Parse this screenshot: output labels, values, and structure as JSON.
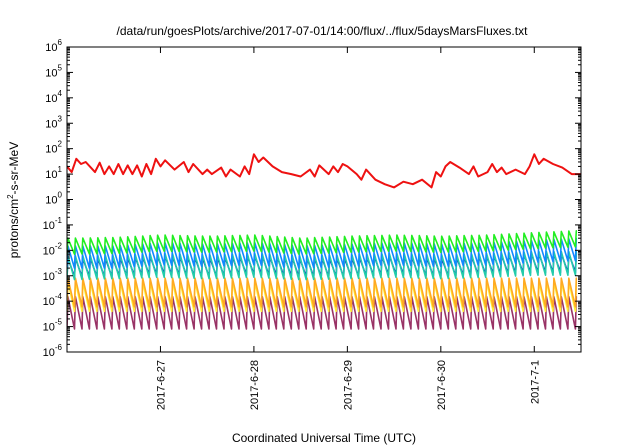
{
  "chart_data": {
    "type": "line",
    "title": "/data/run/goesPlots/archive/2017-07-01/14:00/flux/../flux/5daysMarsFluxes.txt",
    "xlabel": "Coordinated Universal Time (UTC)",
    "ylabel_base": "protons/cm",
    "ylabel_sup": "2",
    "ylabel_rest": "-s-sr-MeV",
    "yscale": "log",
    "ylim": [
      1e-06,
      1000000.0
    ],
    "xlim": [
      0,
      5.5
    ],
    "grid": false,
    "legend": "none",
    "yticks": [
      {
        "base": "10",
        "exp": "-6"
      },
      {
        "base": "10",
        "exp": "-5"
      },
      {
        "base": "10",
        "exp": "-4"
      },
      {
        "base": "10",
        "exp": "-3"
      },
      {
        "base": "10",
        "exp": "-2"
      },
      {
        "base": "10",
        "exp": "-1"
      },
      {
        "base": "10",
        "exp": "0"
      },
      {
        "base": "10",
        "exp": "1"
      },
      {
        "base": "10",
        "exp": "2"
      },
      {
        "base": "10",
        "exp": "3"
      },
      {
        "base": "10",
        "exp": "4"
      },
      {
        "base": "10",
        "exp": "5"
      },
      {
        "base": "10",
        "exp": "6"
      }
    ],
    "xticks": [
      {
        "label": "2017-6-27",
        "pos": 1.0
      },
      {
        "label": "2017-6-28",
        "pos": 2.0
      },
      {
        "label": "2017-6-29",
        "pos": 3.0
      },
      {
        "label": "2017-6-30",
        "pos": 4.0
      },
      {
        "label": "2017-7-1",
        "pos": 5.0
      }
    ],
    "series": [
      {
        "color": "#ee1111",
        "width": 2,
        "x": [
          0,
          0.05,
          0.1,
          0.15,
          0.2,
          0.3,
          0.35,
          0.4,
          0.45,
          0.5,
          0.55,
          0.6,
          0.65,
          0.7,
          0.75,
          0.8,
          0.85,
          0.9,
          0.95,
          1.0,
          1.05,
          1.15,
          1.25,
          1.3,
          1.35,
          1.45,
          1.5,
          1.55,
          1.65,
          1.7,
          1.75,
          1.85,
          1.9,
          1.95,
          2.0,
          2.05,
          2.1,
          2.2,
          2.3,
          2.4,
          2.5,
          2.6,
          2.65,
          2.7,
          2.8,
          2.85,
          2.9,
          2.95,
          3.0,
          3.1,
          3.15,
          3.2,
          3.3,
          3.4,
          3.5,
          3.6,
          3.7,
          3.8,
          3.9,
          3.95,
          4.0,
          4.05,
          4.1,
          4.2,
          4.3,
          4.35,
          4.4,
          4.5,
          4.55,
          4.6,
          4.65,
          4.7,
          4.8,
          4.9,
          4.95,
          5.0,
          5.05,
          5.1,
          5.2,
          5.3,
          5.4,
          5.45,
          5.5
        ],
        "y": [
          20,
          12,
          40,
          25,
          30,
          12,
          28,
          10,
          20,
          10,
          25,
          10,
          22,
          10,
          22,
          8,
          25,
          10,
          40,
          20,
          35,
          15,
          30,
          12,
          25,
          10,
          15,
          10,
          18,
          8,
          15,
          8,
          20,
          10,
          60,
          30,
          45,
          20,
          12,
          10,
          8,
          15,
          8,
          22,
          10,
          20,
          12,
          25,
          20,
          10,
          6,
          15,
          6,
          4,
          3,
          5,
          4,
          6,
          3,
          12,
          8,
          20,
          30,
          18,
          10,
          20,
          8,
          12,
          25,
          12,
          18,
          10,
          15,
          10,
          20,
          60,
          25,
          40,
          25,
          18,
          10,
          10,
          10
        ]
      },
      {
        "color": "#22ee22",
        "width": 1.6,
        "peak": 0.03,
        "trough": 0.007,
        "period": 0.08,
        "x": [
          0,
          0.5,
          1.0,
          1.5,
          2.0,
          2.5,
          3.0,
          3.5,
          4.0,
          4.5,
          5.0,
          5.5
        ],
        "y": [
          0.015,
          0.016,
          0.02,
          0.018,
          0.02,
          0.015,
          0.018,
          0.02,
          0.018,
          0.02,
          0.025,
          0.03
        ]
      },
      {
        "color": "#1188ff",
        "width": 1.6,
        "peak": 0.015,
        "trough": 0.002,
        "period": 0.08,
        "x": [
          0,
          0.5,
          1.0,
          1.5,
          2.0,
          2.5,
          3.0,
          3.5,
          4.0,
          4.5,
          5.0,
          5.5
        ],
        "y": [
          0.006,
          0.006,
          0.008,
          0.007,
          0.008,
          0.006,
          0.007,
          0.008,
          0.007,
          0.008,
          0.01,
          0.012
        ]
      },
      {
        "color": "#22ccaa",
        "width": 1.6,
        "peak": 0.006,
        "trough": 0.0007,
        "period": 0.08,
        "x": [
          0,
          0.5,
          1.0,
          1.5,
          2.0,
          2.5,
          3.0,
          3.5,
          4.0,
          4.5,
          5.0,
          5.5
        ],
        "y": [
          0.002,
          0.0022,
          0.0025,
          0.0022,
          0.0025,
          0.002,
          0.0022,
          0.0025,
          0.0022,
          0.0025,
          0.003,
          0.003
        ]
      },
      {
        "color": "#1111cc",
        "width": 1.6,
        "peak": 0.005,
        "trough": 0.0009,
        "period": 0.08,
        "x": [
          0,
          0.5,
          1.0,
          1.5,
          2.0,
          2.5,
          3.0,
          3.5,
          4.0,
          4.5,
          5.0,
          5.5
        ],
        "y": [
          0.002,
          0.002,
          0.0025,
          0.002,
          0.0025,
          0.002,
          0.002,
          0.0025,
          0.002,
          0.0025,
          0.003,
          0.003
        ]
      },
      {
        "color": "#ffaa22",
        "width": 1.6,
        "peak": 0.0008,
        "trough": 6e-05,
        "period": 0.08,
        "x": [
          0,
          0.5,
          1.0,
          1.5,
          2.0,
          2.5,
          3.0,
          3.5,
          4.0,
          4.5,
          5.0,
          5.5
        ],
        "y": [
          0.0003,
          0.0003,
          0.0003,
          0.0003,
          0.0003,
          0.0003,
          0.0003,
          0.0003,
          0.0003,
          0.0003,
          0.0003,
          0.0003
        ]
      },
      {
        "color": "#ffee33",
        "width": 1.6,
        "peak": 0.0006,
        "trough": 4e-05,
        "period": 0.08,
        "x": [
          0,
          0.5,
          1.0,
          1.5,
          2.0,
          2.5,
          3.0,
          3.5,
          4.0,
          4.5,
          5.0,
          5.5
        ],
        "y": [
          0.0002,
          0.0002,
          0.0002,
          0.0002,
          0.0002,
          0.0002,
          0.0002,
          0.0002,
          0.0002,
          0.0002,
          0.0002,
          0.0002
        ]
      },
      {
        "color": "#993366",
        "width": 1.6,
        "peak": 0.00015,
        "trough": 8e-06,
        "period": 0.08,
        "x": [
          0,
          0.5,
          1.0,
          1.5,
          2.0,
          2.5,
          3.0,
          3.5,
          4.0,
          4.5,
          5.0,
          5.5
        ],
        "y": [
          4e-05,
          4e-05,
          4e-05,
          4e-05,
          4e-05,
          4e-05,
          4e-05,
          4e-05,
          4e-05,
          4e-05,
          4e-05,
          4e-05
        ]
      }
    ]
  }
}
